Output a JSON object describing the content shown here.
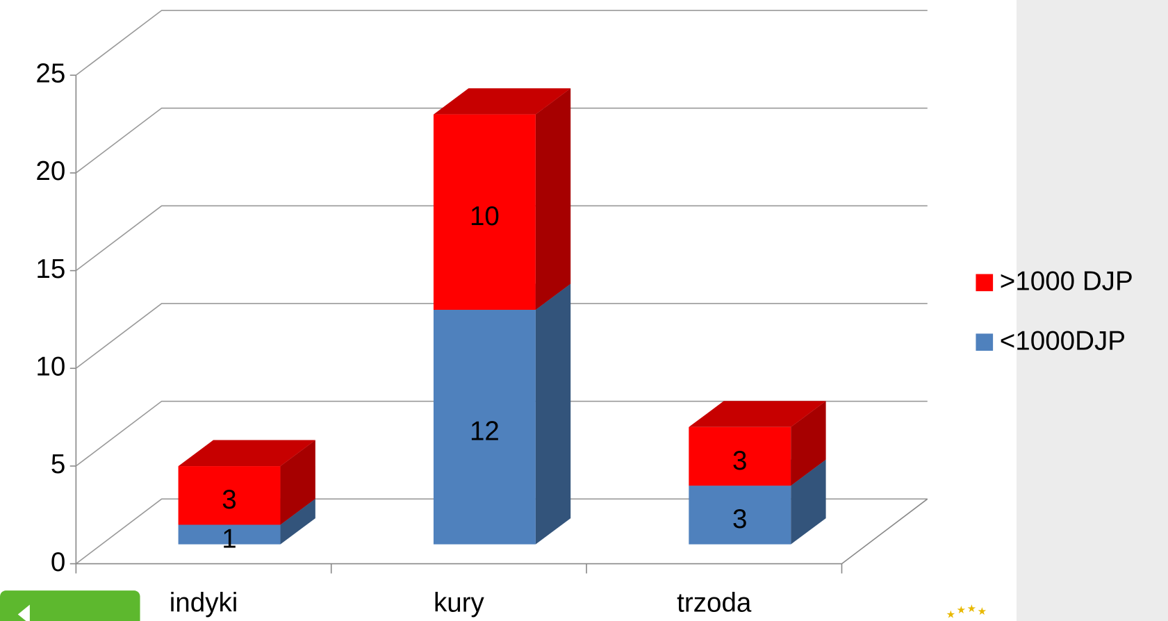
{
  "chart_data": {
    "type": "bar3d_stacked",
    "categories": [
      "indyki",
      "kury",
      "trzoda"
    ],
    "series": [
      {
        "name": "<1000DJP",
        "color": "#4f81bd",
        "values": [
          1,
          12,
          3
        ]
      },
      {
        "name": ">1000 DJP",
        "color": "#ff0000",
        "values": [
          3,
          10,
          3
        ]
      }
    ],
    "ylim": [
      0,
      25
    ],
    "yticks": [
      0,
      5,
      10,
      15,
      20,
      25
    ],
    "grid": true,
    "legend": "right"
  }
}
